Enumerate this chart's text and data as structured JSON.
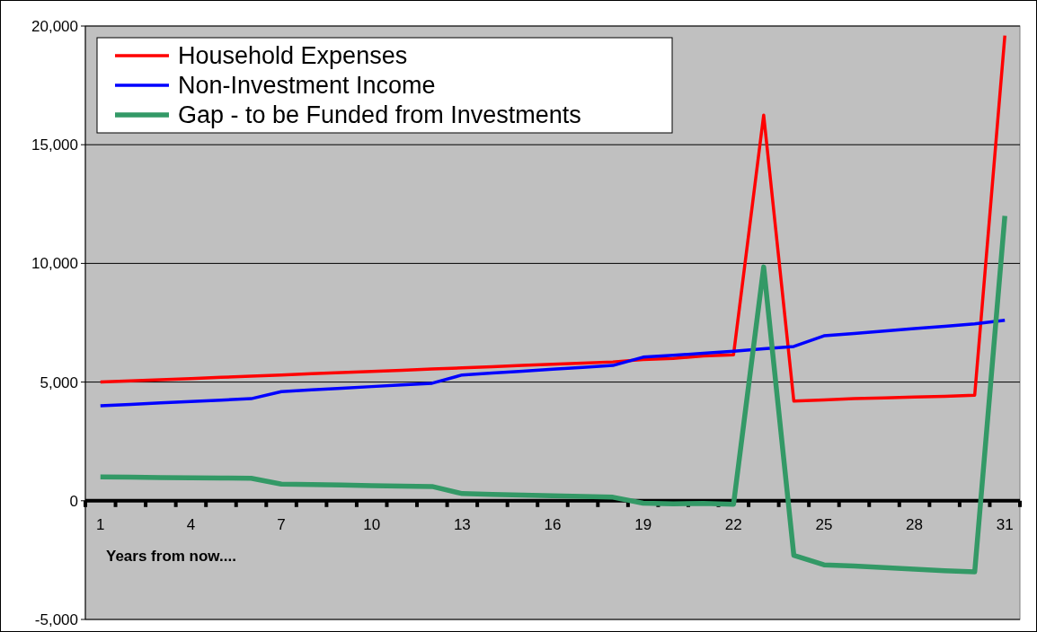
{
  "chart_data": {
    "type": "line",
    "xlabel": "Years from now....",
    "categories": [
      "1",
      null,
      null,
      "4",
      null,
      null,
      "7",
      null,
      null,
      "10",
      null,
      null,
      "13",
      null,
      null,
      "16",
      null,
      null,
      "19",
      null,
      null,
      "22",
      null,
      null,
      "25",
      null,
      null,
      "28",
      null,
      null,
      "31"
    ],
    "series": [
      {
        "name": "Household Expenses",
        "color": "#ff0000",
        "values": [
          5000,
          5050,
          5100,
          5150,
          5200,
          5250,
          5300,
          5350,
          5400,
          5450,
          5500,
          5550,
          5600,
          5650,
          5700,
          5750,
          5800,
          5850,
          5950,
          6000,
          6100,
          6150,
          16250,
          4200,
          4250,
          4300,
          4330,
          4370,
          4400,
          4450,
          19600
        ]
      },
      {
        "name": "Non-Investment Income",
        "color": "#0000ff",
        "values": [
          4000,
          4060,
          4120,
          4180,
          4240,
          4300,
          4600,
          4670,
          4740,
          4810,
          4880,
          4950,
          5300,
          5380,
          5460,
          5540,
          5620,
          5700,
          6050,
          6130,
          6210,
          6300,
          6400,
          6500,
          6950,
          7050,
          7150,
          7250,
          7350,
          7450,
          7600
        ]
      },
      {
        "name": "Gap - to be Funded from Investments",
        "color": "#339966",
        "values": [
          1000,
          990,
          980,
          970,
          960,
          950,
          700,
          680,
          660,
          640,
          620,
          600,
          300,
          270,
          240,
          210,
          180,
          150,
          -100,
          -130,
          -110,
          -150,
          9850,
          -2300,
          -2700,
          -2750,
          -2820,
          -2880,
          -2950,
          -3000,
          12000
        ]
      }
    ],
    "ylim": [
      -5000,
      20000
    ],
    "yticks": [
      {
        "value": -5000,
        "label": "-5,000"
      },
      0,
      {
        "value": 5000,
        "label": "5,000"
      },
      {
        "value": 10000,
        "label": "10,000"
      },
      {
        "value": 15000,
        "label": "15,000"
      },
      {
        "value": 20000,
        "label": "20,000"
      }
    ],
    "grid": "y",
    "legend": "top left"
  }
}
